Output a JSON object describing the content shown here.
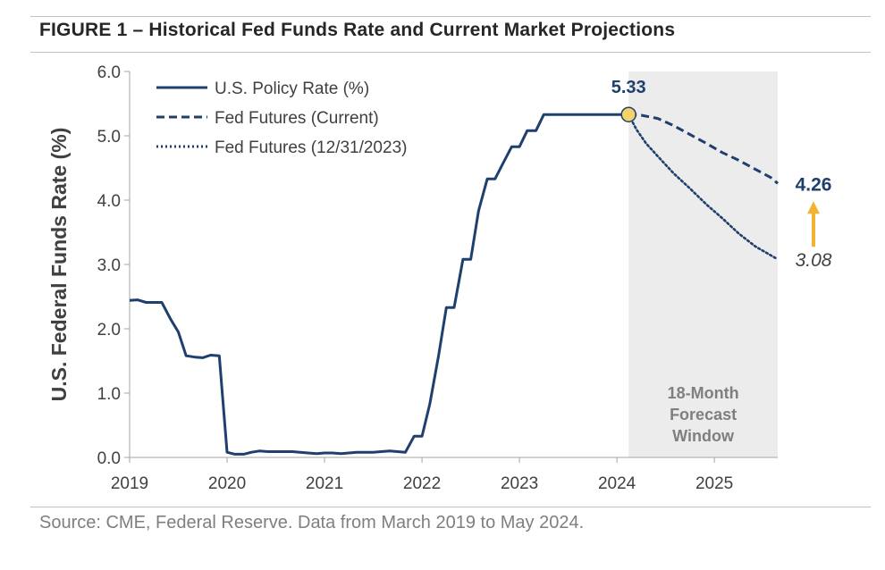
{
  "header": {
    "title": "FIGURE 1 – Historical Fed Funds Rate and Current Market Projections"
  },
  "footer": {
    "source": "Source: CME, Federal Reserve. Data from March 2019 to May 2024."
  },
  "colors": {
    "navy": "#1f3f6e",
    "shade": "#ececec",
    "highlight": "#f6d36a",
    "arrow": "#f2b430",
    "axis_text": "#404040"
  },
  "chart_data": {
    "type": "line",
    "title": "FIGURE 1 – Historical Fed Funds Rate and Current Market Projections",
    "xlabel": "",
    "ylabel": "U.S. Federal Funds Rate (%)",
    "ylim": [
      0,
      6
    ],
    "xlim": [
      2019.0,
      2025.65
    ],
    "yticks": [
      "0.0",
      "1.0",
      "2.0",
      "3.0",
      "4.0",
      "5.0",
      "6.0"
    ],
    "xticks": [
      "2019",
      "2020",
      "2021",
      "2022",
      "2023",
      "2024",
      "2025"
    ],
    "grid": false,
    "legend_position": "top-left",
    "series": [
      {
        "name": "U.S. Policy Rate (%)",
        "style": "solid",
        "x": [
          2019.0,
          2019.08,
          2019.17,
          2019.25,
          2019.33,
          2019.42,
          2019.5,
          2019.58,
          2019.67,
          2019.75,
          2019.83,
          2019.92,
          2020.0,
          2020.08,
          2020.17,
          2020.25,
          2020.33,
          2020.42,
          2020.5,
          2020.58,
          2020.67,
          2020.75,
          2020.83,
          2020.92,
          2021.0,
          2021.08,
          2021.17,
          2021.25,
          2021.33,
          2021.42,
          2021.5,
          2021.58,
          2021.67,
          2021.75,
          2021.83,
          2021.92,
          2022.0,
          2022.08,
          2022.17,
          2022.25,
          2022.33,
          2022.42,
          2022.5,
          2022.58,
          2022.67,
          2022.75,
          2022.83,
          2022.92,
          2023.0,
          2023.08,
          2023.17,
          2023.25,
          2023.33,
          2023.42,
          2023.5,
          2023.58,
          2023.67,
          2023.75,
          2023.83,
          2023.92,
          2024.0,
          2024.08,
          2024.12
        ],
        "y": [
          2.44,
          2.45,
          2.41,
          2.41,
          2.41,
          2.15,
          1.95,
          1.58,
          1.56,
          1.55,
          1.59,
          1.58,
          0.08,
          0.05,
          0.05,
          0.08,
          0.1,
          0.09,
          0.09,
          0.09,
          0.09,
          0.08,
          0.07,
          0.06,
          0.07,
          0.07,
          0.06,
          0.07,
          0.08,
          0.08,
          0.08,
          0.09,
          0.1,
          0.09,
          0.08,
          0.33,
          0.33,
          0.83,
          1.58,
          2.33,
          2.33,
          3.08,
          3.08,
          3.83,
          4.33,
          4.33,
          4.57,
          4.83,
          4.83,
          5.08,
          5.08,
          5.33,
          5.33,
          5.33,
          5.33,
          5.33,
          5.33,
          5.33,
          5.33,
          5.33,
          5.33,
          5.33,
          5.33
        ]
      },
      {
        "name": "Fed Futures (Current)",
        "style": "dashed",
        "x": [
          2024.12,
          2024.25,
          2024.42,
          2024.58,
          2024.75,
          2024.92,
          2025.08,
          2025.25,
          2025.42,
          2025.58,
          2025.65
        ],
        "y": [
          5.33,
          5.32,
          5.27,
          5.16,
          5.02,
          4.88,
          4.74,
          4.62,
          4.48,
          4.35,
          4.26
        ]
      },
      {
        "name": "Fed Futures (12/31/2023)",
        "style": "dotted",
        "x": [
          2024.12,
          2024.2,
          2024.3,
          2024.42,
          2024.58,
          2024.75,
          2024.92,
          2025.08,
          2025.25,
          2025.42,
          2025.58,
          2025.65
        ],
        "y": [
          5.33,
          5.1,
          4.88,
          4.68,
          4.42,
          4.18,
          3.93,
          3.72,
          3.48,
          3.28,
          3.14,
          3.08
        ]
      }
    ],
    "shaded_region": {
      "x0": 2024.12,
      "x1": 2025.65,
      "label": "18-Month Forecast Window"
    },
    "annotations": {
      "start_value": "5.33",
      "current_end_value": "4.26",
      "prior_end_value": "3.08"
    }
  }
}
